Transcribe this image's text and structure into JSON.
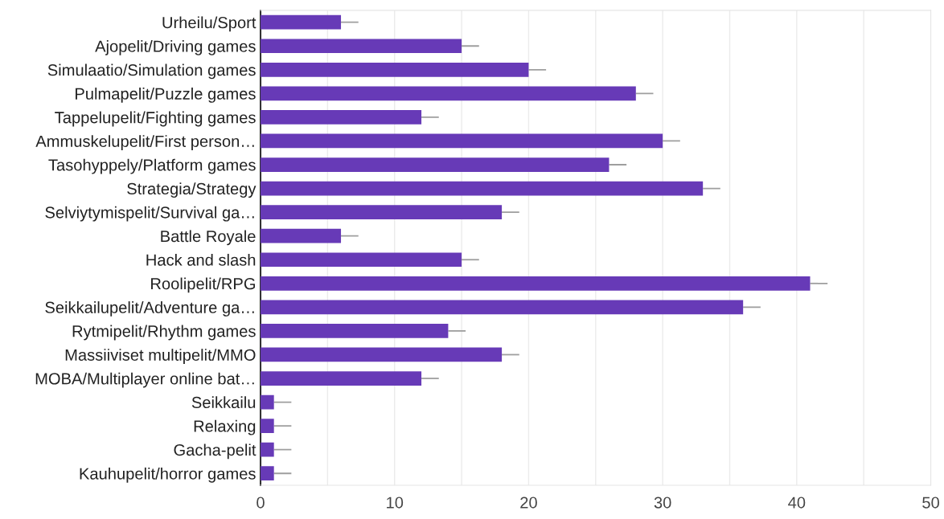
{
  "chart_data": {
    "type": "bar",
    "orientation": "horizontal",
    "categories": [
      "Urheilu/Sport",
      "Ajopelit/Driving games",
      "Simulaatio/Simulation games",
      "Pulmapelit/Puzzle games",
      "Tappelupelit/Fighting games",
      "Ammuskelupelit/First person…",
      "Tasohyppely/Platform games",
      "Strategia/Strategy",
      "Selviytymispelit/Survival ga…",
      "Battle Royale",
      "Hack and slash",
      "Roolipelit/RPG",
      "Seikkailupelit/Adventure ga…",
      "Rytmipelit/Rhythm games",
      "Massiiviset multipelit/MMO",
      "MOBA/Multiplayer online bat…",
      "Seikkailu",
      "Relaxing",
      "Gacha-pelit",
      "Kauhupelit/horror games"
    ],
    "values": [
      6,
      15,
      20,
      28,
      12,
      30,
      26,
      33,
      18,
      6,
      15,
      41,
      36,
      14,
      18,
      12,
      1,
      1,
      1,
      1
    ],
    "errors": [
      [
        6,
        7.3
      ],
      [
        15,
        16.3
      ],
      [
        20,
        21.3
      ],
      [
        28,
        29.3
      ],
      [
        12,
        13.3
      ],
      [
        30,
        31.3
      ],
      [
        26,
        27.3
      ],
      [
        33,
        34.3
      ],
      [
        18,
        19.3
      ],
      [
        6,
        7.3
      ],
      [
        15,
        16.3
      ],
      [
        41,
        42.3
      ],
      [
        36,
        37.3
      ],
      [
        14,
        15.3
      ],
      [
        18,
        19.3
      ],
      [
        12,
        13.3
      ],
      [
        1,
        2.3
      ],
      [
        1,
        2.3
      ],
      [
        1,
        2.3
      ],
      [
        1,
        2.3
      ]
    ],
    "color": "#673ab7",
    "xlim": [
      0,
      50
    ],
    "xticks": [
      0,
      {
        "value": 5,
        "label": null
      },
      10,
      {
        "value": 15,
        "label": null
      },
      20,
      {
        "value": 25,
        "label": null
      },
      30,
      {
        "value": 35,
        "label": null
      },
      40,
      {
        "value": 45,
        "label": null
      },
      50
    ],
    "grid": "x"
  }
}
